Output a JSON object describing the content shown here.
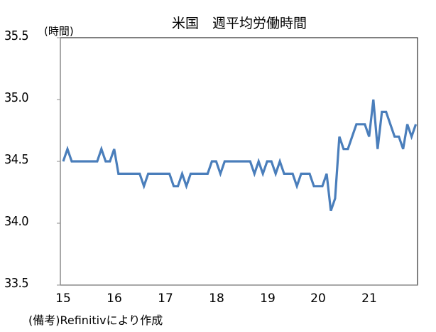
{
  "chart": {
    "title": "米国　週平均労働時間",
    "unit_label": "(時間)",
    "source_note": "(備考)Refinitivにより作成",
    "line_color": "#4a7ebb",
    "y_ticks": [
      "35.5",
      "35.0",
      "34.5",
      "34.0",
      "33.5"
    ],
    "x_ticks": [
      "15",
      "16",
      "17",
      "18",
      "19",
      "20",
      "21"
    ]
  },
  "chart_data": {
    "type": "line",
    "title": "米国　週平均労働時間",
    "xlabel": "",
    "ylabel": "(時間)",
    "ylim": [
      33.5,
      35.5
    ],
    "y_ticks": [
      33.5,
      34.0,
      34.5,
      35.0,
      35.5
    ],
    "x_tick_labels": [
      "15",
      "16",
      "17",
      "18",
      "19",
      "20",
      "21"
    ],
    "grid": false,
    "legend": null,
    "frequency": "monthly",
    "start": "2015-01",
    "series": [
      {
        "name": "週平均労働時間",
        "values": [
          34.5,
          34.6,
          34.5,
          34.5,
          34.5,
          34.5,
          34.5,
          34.5,
          34.5,
          34.6,
          34.5,
          34.5,
          34.6,
          34.4,
          34.4,
          34.4,
          34.4,
          34.4,
          34.4,
          34.3,
          34.4,
          34.4,
          34.4,
          34.4,
          34.4,
          34.4,
          34.3,
          34.3,
          34.4,
          34.3,
          34.4,
          34.4,
          34.4,
          34.4,
          34.4,
          34.5,
          34.5,
          34.4,
          34.5,
          34.5,
          34.5,
          34.5,
          34.5,
          34.5,
          34.5,
          34.4,
          34.5,
          34.4,
          34.5,
          34.5,
          34.4,
          34.5,
          34.4,
          34.4,
          34.4,
          34.3,
          34.4,
          34.4,
          34.4,
          34.3,
          34.3,
          34.3,
          34.4,
          34.1,
          34.2,
          34.7,
          34.6,
          34.6,
          34.7,
          34.8,
          34.8,
          34.8,
          34.7,
          35.0,
          34.6,
          34.9,
          34.9,
          34.8,
          34.7,
          34.7,
          34.6,
          34.8,
          34.7,
          34.8
        ]
      }
    ],
    "source": "(備考)Refinitivにより作成"
  }
}
